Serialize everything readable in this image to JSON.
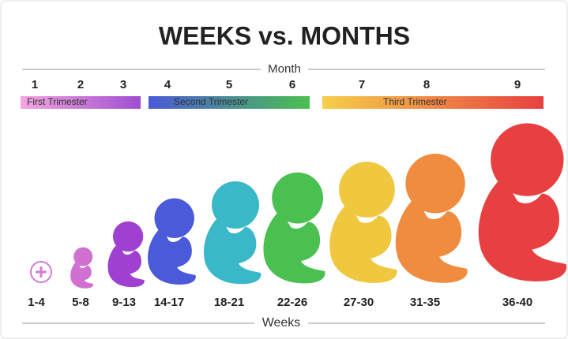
{
  "header": {
    "title": "WEEKS vs. MONTHS"
  },
  "top_axis": {
    "label": "Month",
    "months": [
      "1",
      "2",
      "3",
      "4",
      "5",
      "6",
      "7",
      "8",
      "9"
    ]
  },
  "trimesters": [
    "First Trimester",
    "Second Trimester",
    "Third Trimester"
  ],
  "bottom_axis": {
    "label": "Weeks",
    "weeks": [
      "1-4",
      "5-8",
      "9-13",
      "14-17",
      "18-21",
      "22-26",
      "27-30",
      "31-35",
      "36-40"
    ]
  }
}
